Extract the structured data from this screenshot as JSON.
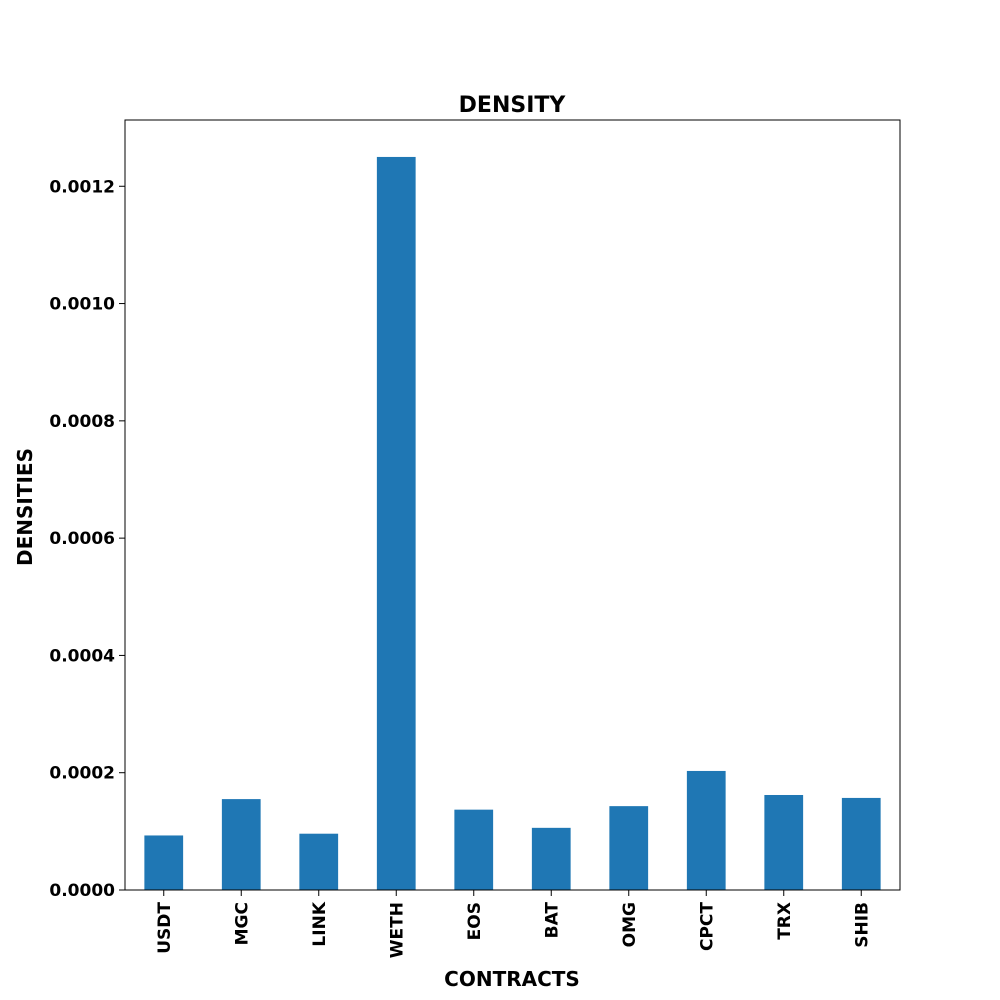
{
  "chart_data": {
    "type": "bar",
    "title": "DENSITY",
    "xlabel": "CONTRACTS",
    "ylabel": "DENSITIES",
    "categories": [
      "USDT",
      "MGC",
      "LINK",
      "WETH",
      "EOS",
      "BAT",
      "OMG",
      "CPCT",
      "TRX",
      "SHIB"
    ],
    "values": [
      9.3e-05,
      0.000155,
      9.6e-05,
      0.00125,
      0.000137,
      0.000106,
      0.000143,
      0.000203,
      0.000162,
      0.000157
    ],
    "ylim": [
      0,
      0.001313
    ],
    "yticks": [
      "0.0000",
      "0.0002",
      "0.0004",
      "0.0006",
      "0.0008",
      "0.0010",
      "0.0012"
    ],
    "ytick_values": [
      0,
      0.0002,
      0.0004,
      0.0006,
      0.0008,
      0.001,
      0.0012
    ],
    "grid": false,
    "colors": {
      "bar": "#1f77b4"
    }
  }
}
